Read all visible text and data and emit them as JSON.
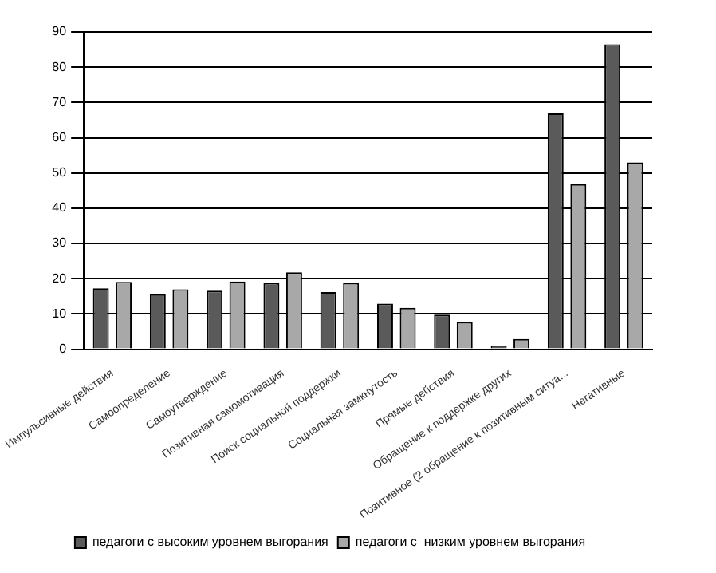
{
  "chart_data": {
    "type": "bar",
    "categories": [
      "Импульсивные действия",
      "Самоопределение",
      "Самоутверждение",
      "Позитивная самомотивация",
      "Поиск социальной поддержки",
      "Социальная замкнутость",
      "Прямые действия",
      "Обращение к поддержке других",
      "Позитивное (2 обращение к позитивным ситуа...",
      "Негативные"
    ],
    "series": [
      {
        "name": "педагоги с высоким уровнем выгорания",
        "color": "#5a5a5a",
        "values": [
          17.3,
          15.6,
          16.6,
          18.8,
          16.2,
          12.9,
          9.8,
          1,
          66.9,
          86.5
        ]
      },
      {
        "name": "педагоги с  низким уровнем выгорания",
        "color": "#a8a8a8",
        "values": [
          19.1,
          17,
          19.2,
          21.8,
          18.8,
          11.7,
          7.7,
          2.9,
          46.8,
          53
        ]
      }
    ],
    "ylim": [
      0,
      90
    ],
    "yticks": [
      0,
      10,
      20,
      30,
      40,
      50,
      60,
      70,
      80,
      90
    ],
    "grid": "y",
    "legend": "bottom"
  }
}
